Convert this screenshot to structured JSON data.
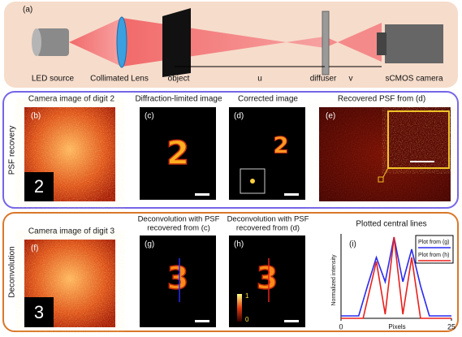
{
  "setup": {
    "panel": "(a)",
    "led": "LED source",
    "lens": "Collimated Lens",
    "object": "object",
    "diffuser": "diffuser",
    "v": "v",
    "camera": "sCMOS camera",
    "u": "u"
  },
  "rows": [
    {
      "label": "PSF recovery",
      "panels": [
        {
          "tag": "(b)",
          "title": "Camera image of digit 2",
          "digit": "2"
        },
        {
          "tag": "(c)",
          "title": "Diffraction-limited image",
          "digit": "2"
        },
        {
          "tag": "(d)",
          "title": "Corrected image",
          "digit": "2"
        },
        {
          "tag": "(e)",
          "title": "Recovered PSF from (d)"
        }
      ]
    },
    {
      "label": "Deconvolution",
      "panels": [
        {
          "tag": "(f)",
          "title": "Camera image of digit 3",
          "digit": "3"
        },
        {
          "tag": "(g)",
          "title": [
            "Deconvolution with PSF",
            "recovered from (c)"
          ],
          "digit": "3"
        },
        {
          "tag": "(h)",
          "title": [
            "Deconvolution with PSF",
            "recovered from (d)"
          ],
          "digit": "3",
          "colorbar": [
            "1",
            "0"
          ]
        }
      ]
    }
  ],
  "chart_data": {
    "type": "line",
    "title": "Plotted central lines",
    "panel": "(i)",
    "x_label": "Pixels",
    "y_label": "Normalized intensity",
    "xlim": [
      0,
      25
    ],
    "ylim": [
      0,
      1
    ],
    "xticks": [
      0,
      25
    ],
    "series": [
      {
        "name": "Plot from (g)",
        "color": "#2a2af0",
        "x": [
          0,
          4,
          6,
          8,
          10,
          12,
          14,
          16,
          18,
          20,
          25
        ],
        "values": [
          0.03,
          0.03,
          0.4,
          0.75,
          0.45,
          1.0,
          0.45,
          0.85,
          0.4,
          0.03,
          0.03
        ]
      },
      {
        "name": "Plot from (h)",
        "color": "#e8201c",
        "x": [
          0,
          5,
          8,
          10,
          12,
          14,
          16,
          18,
          25
        ],
        "values": [
          0,
          0,
          0.7,
          0.05,
          1.0,
          0.05,
          0.75,
          0,
          0
        ]
      }
    ]
  }
}
